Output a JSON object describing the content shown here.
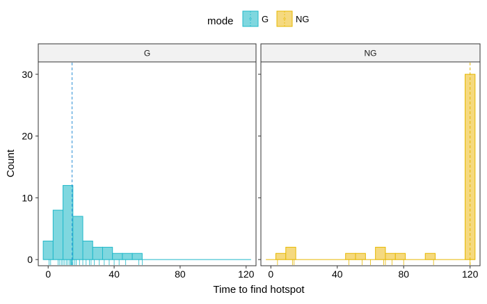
{
  "legend": {
    "title": "mode",
    "items": [
      {
        "key": "G",
        "label": "G",
        "color": "#1fb8c9",
        "fill": "#7fd7df"
      },
      {
        "key": "NG",
        "label": "NG",
        "color": "#e6b800",
        "fill": "#f5d97f"
      }
    ]
  },
  "chart_data": {
    "type": "bar",
    "subtype": "faceted histogram with rug and median lines",
    "xlabel": "Time to find hotspot",
    "ylabel": "Count",
    "x_range": [
      -6,
      126
    ],
    "y_range": [
      -1,
      32
    ],
    "x_ticks": [
      0,
      40,
      80,
      120
    ],
    "y_ticks": [
      0,
      10,
      20,
      30
    ],
    "bin_width": 6,
    "legend_position": "top",
    "grid": false,
    "facets": [
      {
        "label": "G",
        "series": "G",
        "median_line": 14.5,
        "bins": [
          {
            "x": 0,
            "count": 3
          },
          {
            "x": 6,
            "count": 8
          },
          {
            "x": 12,
            "count": 12
          },
          {
            "x": 18,
            "count": 7
          },
          {
            "x": 24,
            "count": 3
          },
          {
            "x": 30,
            "count": 2
          },
          {
            "x": 36,
            "count": 2
          },
          {
            "x": 42,
            "count": 1
          },
          {
            "x": 48,
            "count": 1
          },
          {
            "x": 54,
            "count": 1
          },
          {
            "x": 60,
            "count": 0
          },
          {
            "x": 66,
            "count": 0
          },
          {
            "x": 72,
            "count": 0
          },
          {
            "x": 78,
            "count": 0
          },
          {
            "x": 84,
            "count": 0
          },
          {
            "x": 90,
            "count": 0
          },
          {
            "x": 96,
            "count": 0
          },
          {
            "x": 102,
            "count": 0
          },
          {
            "x": 108,
            "count": 0
          },
          {
            "x": 114,
            "count": 0
          },
          {
            "x": 120,
            "count": 0
          }
        ],
        "rug": [
          0.5,
          1.5,
          6,
          7,
          8,
          9,
          10,
          11,
          12,
          13,
          13.5,
          14,
          14.5,
          15,
          16,
          17,
          19,
          21,
          23,
          25,
          26,
          28,
          31,
          34,
          37,
          40,
          43,
          47,
          55,
          57
        ]
      },
      {
        "label": "NG",
        "series": "NG",
        "median_line": 120,
        "bins": [
          {
            "x": 0,
            "count": 0
          },
          {
            "x": 6,
            "count": 1
          },
          {
            "x": 12,
            "count": 2
          },
          {
            "x": 18,
            "count": 0
          },
          {
            "x": 24,
            "count": 0
          },
          {
            "x": 30,
            "count": 0
          },
          {
            "x": 36,
            "count": 0
          },
          {
            "x": 42,
            "count": 0
          },
          {
            "x": 48,
            "count": 1
          },
          {
            "x": 54,
            "count": 1
          },
          {
            "x": 60,
            "count": 0
          },
          {
            "x": 66,
            "count": 2
          },
          {
            "x": 72,
            "count": 1
          },
          {
            "x": 78,
            "count": 1
          },
          {
            "x": 84,
            "count": 0
          },
          {
            "x": 90,
            "count": 0
          },
          {
            "x": 96,
            "count": 1
          },
          {
            "x": 102,
            "count": 0
          },
          {
            "x": 108,
            "count": 0
          },
          {
            "x": 114,
            "count": 0
          },
          {
            "x": 120,
            "count": 30
          }
        ],
        "rug": [
          4,
          13,
          14,
          47,
          55,
          60,
          68,
          69,
          73,
          80,
          98,
          120
        ]
      }
    ]
  }
}
